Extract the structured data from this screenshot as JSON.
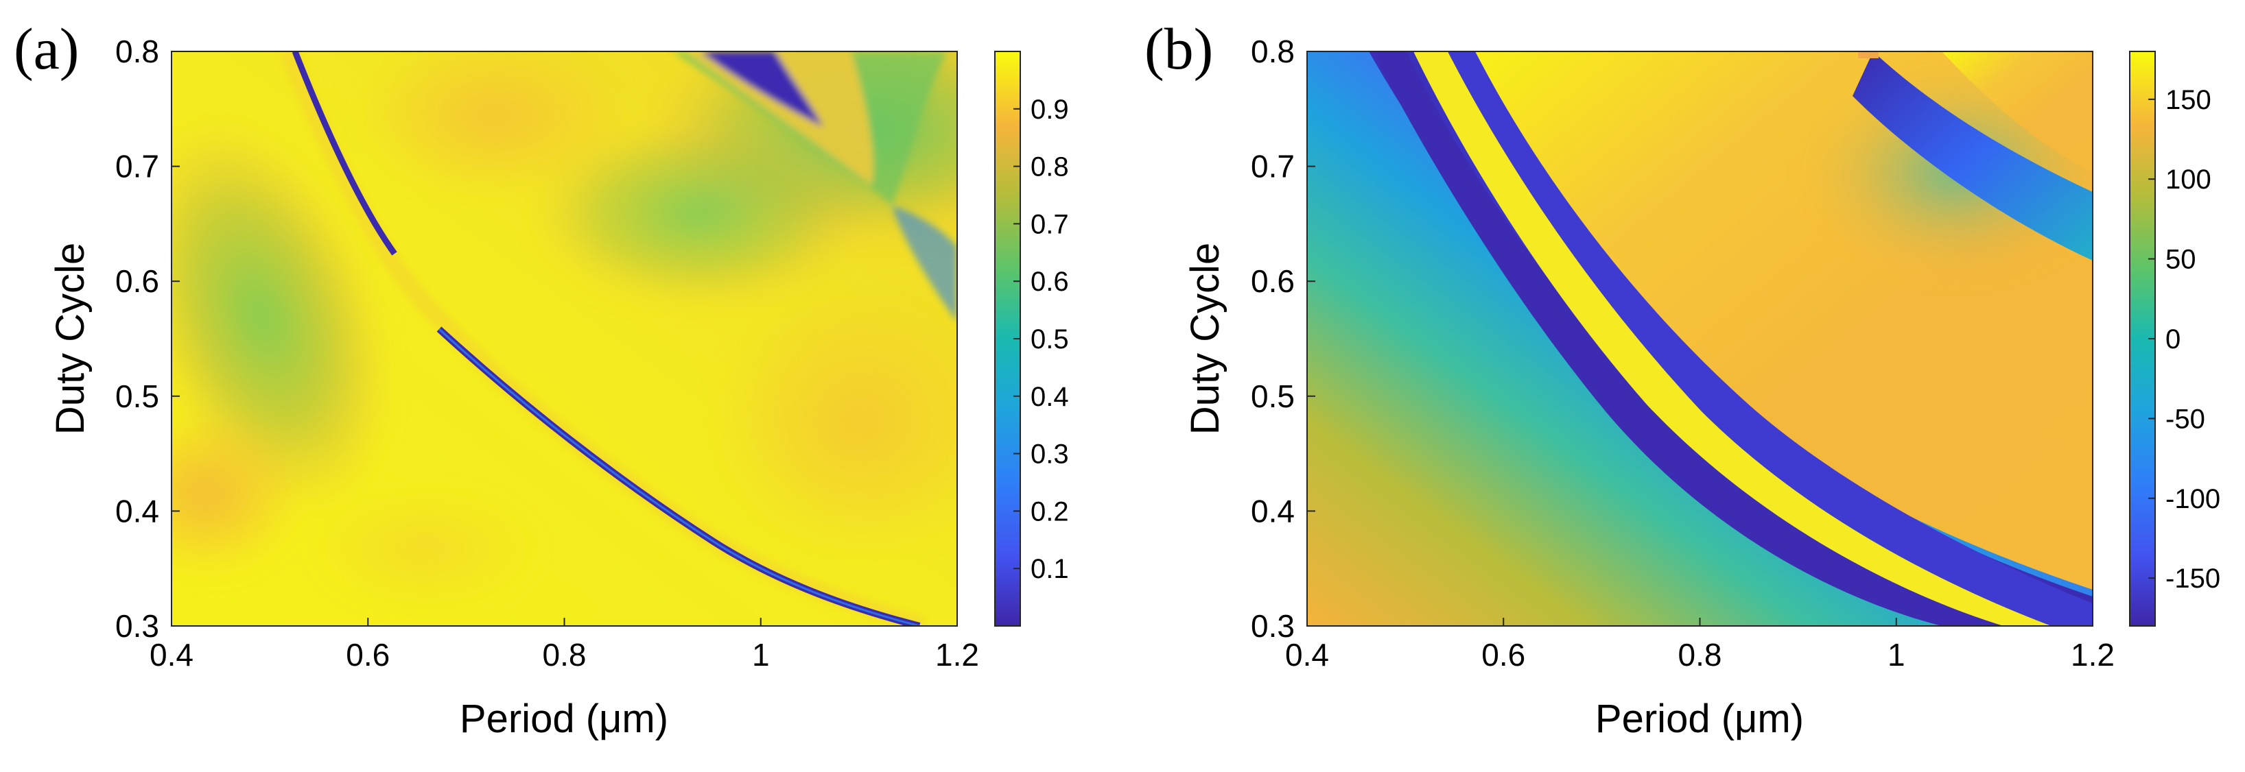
{
  "chart_data": [
    {
      "type": "heatmap",
      "panel_label": "(a)",
      "xlabel": "Period (μm)",
      "ylabel": "Duty Cycle",
      "xlim": [
        0.4,
        1.2
      ],
      "ylim": [
        0.3,
        0.8
      ],
      "x_ticks": [
        "0.4",
        "0.6",
        "0.8",
        "1",
        "1.2"
      ],
      "y_ticks": [
        "0.3",
        "0.4",
        "0.5",
        "0.6",
        "0.7",
        "0.8"
      ],
      "colorbar": {
        "range": [
          0,
          1
        ],
        "ticks": [
          "0.1",
          "0.2",
          "0.3",
          "0.4",
          "0.5",
          "0.6",
          "0.7",
          "0.8",
          "0.9"
        ]
      },
      "features": [
        "narrow low-value resonance band curving from (0.53, 0.8) to (1.17, 0.3)",
        "low-value wedge near (1.0, 0.78)",
        "mid-value (~0.5) regions at left and top-right"
      ]
    },
    {
      "type": "heatmap",
      "panel_label": "(b)",
      "xlabel": "Period (μm)",
      "ylabel": "Duty Cycle",
      "xlim": [
        0.4,
        1.2
      ],
      "ylim": [
        0.3,
        0.8
      ],
      "x_ticks": [
        "0.4",
        "0.6",
        "0.8",
        "1",
        "1.2"
      ],
      "y_ticks": [
        "0.3",
        "0.4",
        "0.5",
        "0.6",
        "0.7",
        "0.8"
      ],
      "colorbar": {
        "range": [
          -180,
          180
        ],
        "ticks": [
          "-150",
          "-100",
          "-50",
          "0",
          "50",
          "100",
          "150"
        ]
      },
      "features": [
        "phase wrapping bands from lower-left to upper-right",
        "blue (~-170) wrapped band curving from (0.45, 0.8) to (1.2, 0.33)",
        "yellow/orange (~150) plateau in upper-right"
      ]
    }
  ]
}
